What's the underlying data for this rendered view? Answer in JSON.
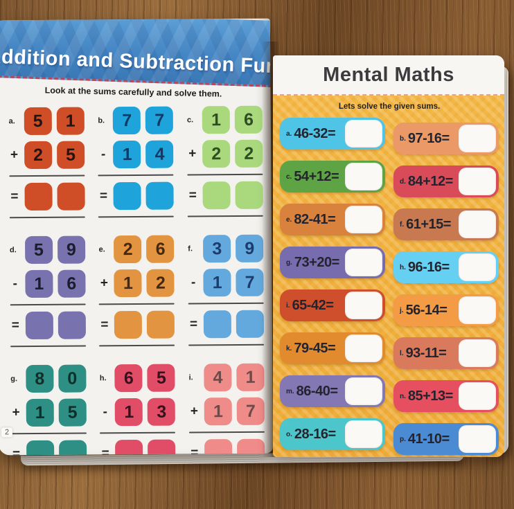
{
  "left_page": {
    "title": "Addition and Subtraction Fun",
    "instruction": "Look at the sums carefully and solve them.",
    "page_number": "2",
    "sums": [
      {
        "label": "a.",
        "op": "+",
        "top": [
          "5",
          "1"
        ],
        "bottom": [
          "2",
          "5"
        ],
        "tile_color": "#cf4e28",
        "digit_color": "#231512"
      },
      {
        "label": "b.",
        "op": "-",
        "top": [
          "7",
          "7"
        ],
        "bottom": [
          "1",
          "4"
        ],
        "tile_color": "#1ea4da",
        "digit_color": "#123a66"
      },
      {
        "label": "c.",
        "op": "+",
        "top": [
          "1",
          "6"
        ],
        "bottom": [
          "2",
          "2"
        ],
        "tile_color": "#a9d87d",
        "digit_color": "#2f4d22"
      },
      {
        "label": "d.",
        "op": "-",
        "top": [
          "5",
          "9"
        ],
        "bottom": [
          "1",
          "6"
        ],
        "tile_color": "#7873ae",
        "digit_color": "#1c1c2c"
      },
      {
        "label": "e.",
        "op": "+",
        "top": [
          "2",
          "6"
        ],
        "bottom": [
          "1",
          "2"
        ],
        "tile_color": "#e39440",
        "digit_color": "#45280e"
      },
      {
        "label": "f.",
        "op": "-",
        "top": [
          "3",
          "9"
        ],
        "bottom": [
          "1",
          "7"
        ],
        "tile_color": "#64a9dd",
        "digit_color": "#1d3c6e"
      },
      {
        "label": "g.",
        "op": "+",
        "top": [
          "8",
          "0"
        ],
        "bottom": [
          "1",
          "5"
        ],
        "tile_color": "#2e8f85",
        "digit_color": "#0f2f2a"
      },
      {
        "label": "h.",
        "op": "-",
        "top": [
          "6",
          "5"
        ],
        "bottom": [
          "1",
          "3"
        ],
        "tile_color": "#e14c67",
        "digit_color": "#38111c"
      },
      {
        "label": "i.",
        "op": "+",
        "top": [
          "4",
          "1"
        ],
        "bottom": [
          "1",
          "7"
        ],
        "tile_color": "#ef8b88",
        "digit_color": "#6e4a4a"
      }
    ]
  },
  "right_page": {
    "title": "Mental Maths",
    "instruction": "Lets solve the given sums.",
    "sums": [
      {
        "label": "a.",
        "expr": "46-32=",
        "color": "#4fc4e6"
      },
      {
        "label": "b.",
        "expr": "97-16=",
        "color": "#eb9a67"
      },
      {
        "label": "c.",
        "expr": "54+12=",
        "color": "#5ea344"
      },
      {
        "label": "d.",
        "expr": "84+12=",
        "color": "#d94b58"
      },
      {
        "label": "e.",
        "expr": "82-41=",
        "color": "#d8823e"
      },
      {
        "label": "f.",
        "expr": "61+15=",
        "color": "#c9794f"
      },
      {
        "label": "g.",
        "expr": "73+20=",
        "color": "#776cae"
      },
      {
        "label": "h.",
        "expr": "96-16=",
        "color": "#66d0f2"
      },
      {
        "label": "i.",
        "expr": "65-42=",
        "color": "#cf4e2c"
      },
      {
        "label": "j.",
        "expr": "56-14=",
        "color": "#f49b46"
      },
      {
        "label": "k.",
        "expr": "79-45=",
        "color": "#e28a2e"
      },
      {
        "label": "l.",
        "expr": "93-11=",
        "color": "#da7a5d"
      },
      {
        "label": "m.",
        "expr": "86-40=",
        "color": "#8377b4"
      },
      {
        "label": "n.",
        "expr": "85+13=",
        "color": "#e54f5f"
      },
      {
        "label": "o.",
        "expr": "28-16=",
        "color": "#4cc5cb"
      },
      {
        "label": "p.",
        "expr": "41-10=",
        "color": "#4a8bd4"
      }
    ]
  },
  "palette": {
    "banner_blue": "#4586c4",
    "yellow_background": "#f2b23d",
    "page_white": "#f4f2ee",
    "wood_brown": "#8a5e33"
  }
}
